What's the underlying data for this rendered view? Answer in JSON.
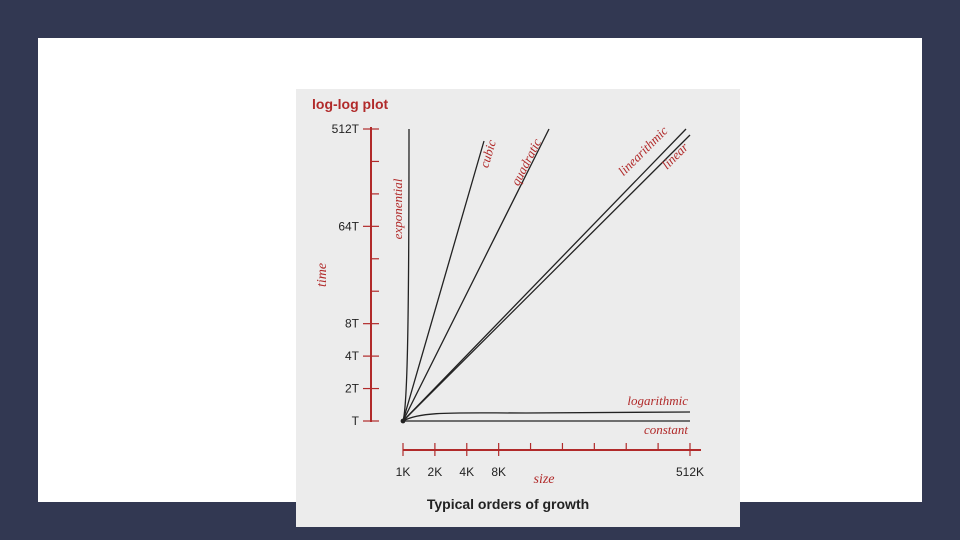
{
  "colors": {
    "background": "#323852",
    "slide": "#ffffff",
    "figure": "#ececec",
    "axis": "#b12a2a",
    "curve": "#222222"
  },
  "chart_data": {
    "type": "line",
    "title": "log-log plot",
    "caption": "Typical orders of growth",
    "xlabel": "size",
    "ylabel": "time",
    "x_scale": "log2",
    "y_scale": "log2",
    "x_ticks": [
      "1K",
      "2K",
      "4K",
      "8K",
      "512K"
    ],
    "y_ticks": [
      "T",
      "2T",
      "4T",
      "8T",
      "64T",
      "512T"
    ],
    "series": [
      {
        "name": "exponential"
      },
      {
        "name": "cubic"
      },
      {
        "name": "quadratic"
      },
      {
        "name": "linearithmic"
      },
      {
        "name": "linear"
      },
      {
        "name": "logarithmic"
      },
      {
        "name": "constant"
      }
    ]
  }
}
